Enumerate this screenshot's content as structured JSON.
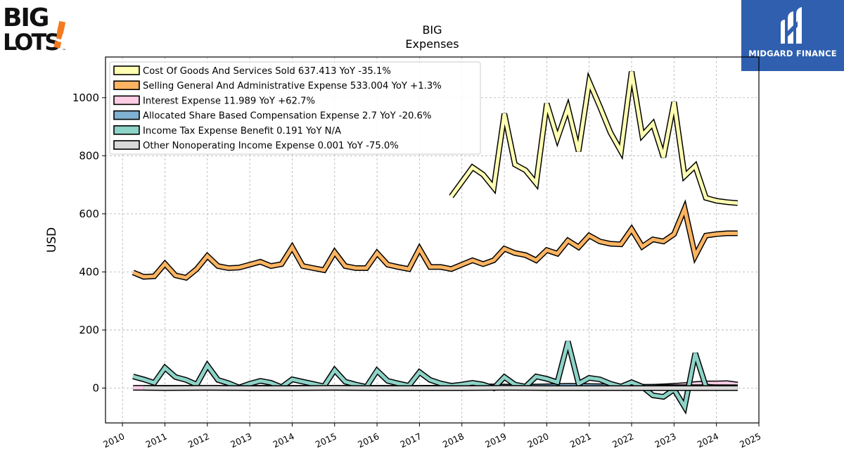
{
  "brand": {
    "logo_text_top": "BIG",
    "logo_text_bottom": "LOTS",
    "logo_mark": "!",
    "trademark": "™"
  },
  "partner": {
    "name": "MIDGARD FINANCE",
    "icon": "midgard-m-icon"
  },
  "chart_data": {
    "type": "line",
    "title": "BIG",
    "subtitle": "Expenses",
    "ylabel": "USD",
    "xlabel": "",
    "xlim": [
      2009.6,
      2025.0
    ],
    "ylim": [
      -120,
      1140
    ],
    "yticks": [
      0,
      200,
      400,
      600,
      800,
      1000
    ],
    "xticks": [
      "2010",
      "2011",
      "2012",
      "2013",
      "2014",
      "2015",
      "2016",
      "2017",
      "2018",
      "2019",
      "2020",
      "2021",
      "2022",
      "2023",
      "2024",
      "2025"
    ],
    "grid": true,
    "legend_position": "top-left",
    "series": [
      {
        "name": "Cost Of Goods And Services Sold",
        "legend_label": "Cost Of Goods And Services Sold  637.413 YoY -35.1%",
        "color": "#ffffb3",
        "x": [
          2017.75,
          2018.0,
          2018.25,
          2018.5,
          2018.75,
          2019.0,
          2019.25,
          2019.5,
          2019.75,
          2020.0,
          2020.25,
          2020.5,
          2020.75,
          2021.0,
          2021.25,
          2021.5,
          2021.75,
          2022.0,
          2022.25,
          2022.5,
          2022.75,
          2023.0,
          2023.25,
          2023.5,
          2023.75,
          2024.0,
          2024.25,
          2024.5
        ],
        "y": [
          660,
          710,
          760,
          735,
          690,
          945,
          770,
          750,
          705,
          980,
          860,
          965,
          815,
          1055,
          970,
          880,
          815,
          1090,
          870,
          910,
          795,
          985,
          730,
          765,
          655,
          645,
          640,
          637
        ]
      },
      {
        "name": "Selling General And Administrative Expense",
        "legend_label": "Selling General And Administrative Expense  533.004 YoY +1.3%",
        "color": "#fdb462",
        "x": [
          2010.25,
          2010.5,
          2010.75,
          2011.0,
          2011.25,
          2011.5,
          2011.75,
          2012.0,
          2012.25,
          2012.5,
          2012.75,
          2013.0,
          2013.25,
          2013.5,
          2013.75,
          2014.0,
          2014.25,
          2014.5,
          2014.75,
          2015.0,
          2015.25,
          2015.5,
          2015.75,
          2016.0,
          2016.25,
          2016.5,
          2016.75,
          2017.0,
          2017.25,
          2017.5,
          2017.75,
          2018.0,
          2018.25,
          2018.5,
          2018.75,
          2019.0,
          2019.25,
          2019.5,
          2019.75,
          2020.0,
          2020.25,
          2020.5,
          2020.75,
          2021.0,
          2021.25,
          2021.5,
          2021.75,
          2022.0,
          2022.25,
          2022.5,
          2022.75,
          2023.0,
          2023.25,
          2023.5,
          2023.75,
          2024.0,
          2024.25,
          2024.5
        ],
        "y": [
          398,
          383,
          385,
          428,
          388,
          380,
          410,
          455,
          420,
          413,
          415,
          425,
          435,
          420,
          427,
          485,
          420,
          413,
          406,
          468,
          420,
          413,
          413,
          465,
          425,
          417,
          410,
          480,
          417,
          417,
          410,
          425,
          440,
          427,
          440,
          480,
          465,
          458,
          440,
          475,
          463,
          508,
          485,
          525,
          505,
          497,
          495,
          547,
          487,
          512,
          505,
          530,
          618,
          455,
          525,
          530,
          533,
          533
        ]
      },
      {
        "name": "Interest Expense",
        "legend_label": "Interest Expense  11.989 YoY +62.7%",
        "color": "#fccde5",
        "x": [
          2010.25,
          2010.5,
          2011.0,
          2012.0,
          2013.0,
          2014.0,
          2015.0,
          2016.0,
          2017.0,
          2018.0,
          2019.0,
          2020.0,
          2021.0,
          2021.75,
          2022.25,
          2022.75,
          2023.0,
          2023.25,
          2023.5,
          2023.75,
          2024.0,
          2024.25,
          2024.5
        ],
        "y": [
          1,
          1,
          1,
          1,
          1,
          1,
          1,
          1,
          1,
          2,
          2,
          3,
          2,
          2,
          3,
          6,
          8,
          10,
          14,
          16,
          16,
          17,
          12
        ]
      },
      {
        "name": "Allocated Share Based Compensation Expense",
        "legend_label": "Allocated Share Based Compensation Expense  2.7 YoY -20.6%",
        "color": "#80b1d3",
        "x": [
          2017.75,
          2018.0,
          2018.5,
          2019.0,
          2019.5,
          2020.0,
          2020.5,
          2021.0,
          2021.5,
          2022.0,
          2022.5,
          2023.0,
          2023.5,
          2024.0,
          2024.5
        ],
        "y": [
          4,
          5,
          6,
          5,
          5,
          6,
          8,
          7,
          6,
          5,
          4,
          3,
          3,
          3,
          2.7
        ]
      },
      {
        "name": "Income Tax Expense Benefit",
        "legend_label": "Income Tax Expense Benefit  0.191 YoY N/A",
        "color": "#8dd3c7",
        "x": [
          2010.25,
          2010.5,
          2010.75,
          2011.0,
          2011.25,
          2011.5,
          2011.75,
          2012.0,
          2012.25,
          2012.5,
          2012.75,
          2013.0,
          2013.25,
          2013.5,
          2013.75,
          2014.0,
          2014.25,
          2014.5,
          2014.75,
          2015.0,
          2015.25,
          2015.5,
          2015.75,
          2016.0,
          2016.25,
          2016.5,
          2016.75,
          2017.0,
          2017.25,
          2017.5,
          2017.75,
          2018.0,
          2018.25,
          2018.5,
          2018.75,
          2019.0,
          2019.25,
          2019.5,
          2019.75,
          2020.0,
          2020.25,
          2020.5,
          2020.75,
          2021.0,
          2021.25,
          2021.5,
          2021.75,
          2022.0,
          2022.25,
          2022.5,
          2022.75,
          2023.0,
          2023.25,
          2023.5,
          2023.75,
          2024.0,
          2024.25,
          2024.5
        ],
        "y": [
          40,
          30,
          18,
          70,
          38,
          28,
          12,
          78,
          28,
          17,
          2,
          15,
          25,
          18,
          3,
          30,
          22,
          14,
          6,
          62,
          22,
          12,
          4,
          60,
          25,
          16,
          8,
          55,
          28,
          16,
          8,
          12,
          18,
          12,
          0,
          38,
          12,
          5,
          40,
          32,
          20,
          160,
          15,
          35,
          30,
          15,
          5,
          20,
          5,
          -25,
          -30,
          -5,
          -65,
          120,
          5,
          2,
          1,
          0.191
        ]
      },
      {
        "name": "Other Nonoperating Income Expense",
        "legend_label": "Other Nonoperating Income Expense  0.001 YoY -75.0%",
        "color": "#d9d9d9",
        "x": [
          2010.5,
          2011.0,
          2012.0,
          2013.0,
          2014.0,
          2015.0,
          2016.0,
          2017.0,
          2018.0,
          2019.0,
          2020.0,
          2021.0,
          2022.0,
          2023.0,
          2024.0,
          2024.5
        ],
        "y": [
          1,
          0,
          1,
          0,
          0,
          1,
          0,
          0,
          0,
          1,
          0,
          0,
          0,
          0,
          0,
          0.001
        ]
      }
    ]
  }
}
